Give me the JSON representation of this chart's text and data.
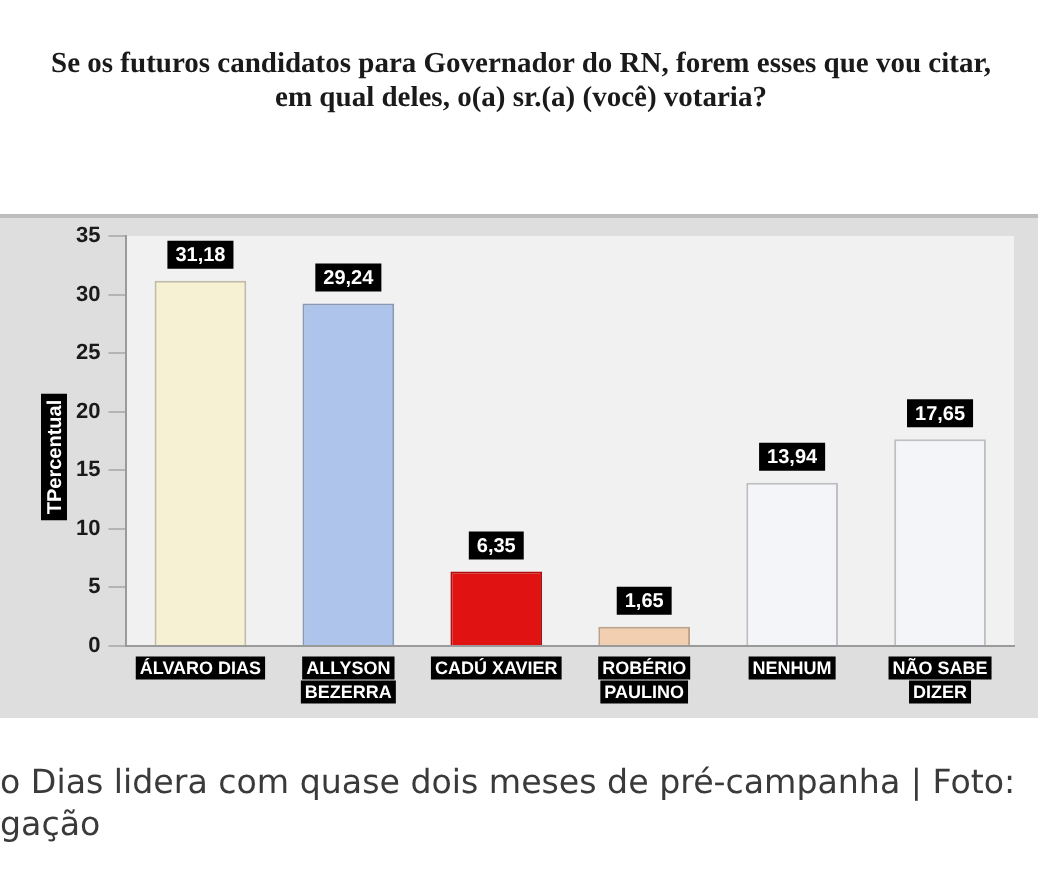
{
  "chart_data": {
    "type": "bar",
    "title": "Se os futuros candidatos para Governador do RN, forem esses que vou citar, em qual deles, o(a) sr.(a) (você) votaria?",
    "ylabel": "TPercentual",
    "categories": [
      "ÁLVARO DIAS",
      "ALLYSON BEZERRA",
      "CADÚ XAVIER",
      "ROBÉRIO PAULINO",
      "NENHUM",
      "NÃO SABE DIZER"
    ],
    "values": [
      31.18,
      29.24,
      6.35,
      1.65,
      13.94,
      17.65
    ],
    "colors": [
      "#f6f1d3",
      "#aec4ea",
      "#e01212",
      "#f2cfb0",
      "#f4f5f9",
      "#f4f5f9"
    ],
    "value_labels": [
      "31,18",
      "29,24",
      "6,35",
      "1,65",
      "13,94",
      "17,65"
    ],
    "ylim": [
      0,
      35
    ],
    "yticks": [
      0,
      5,
      10,
      15,
      20,
      25,
      30,
      35
    ],
    "annotations": [
      "o Dias lidera com quase dois meses de pré-campanha | Foto:",
      "gação"
    ]
  }
}
